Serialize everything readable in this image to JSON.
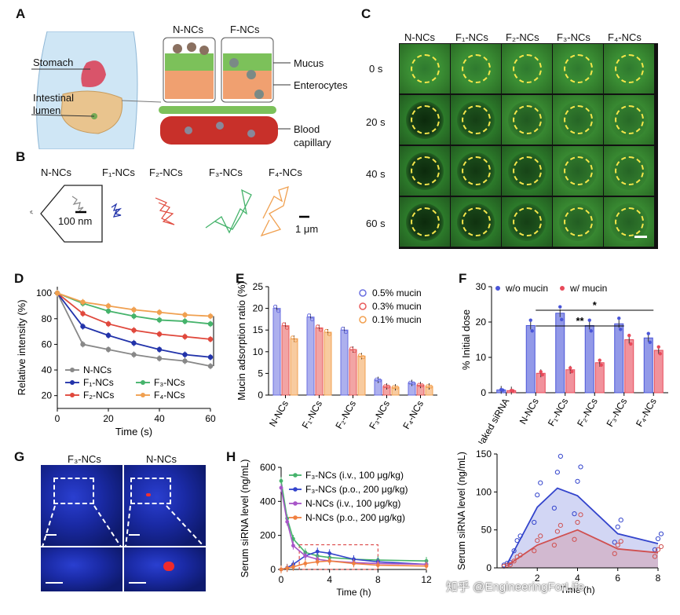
{
  "panels": {
    "A": {
      "label": "A",
      "body_labels": [
        "Stomach",
        "Intestinal",
        "lumen"
      ],
      "col_labels": [
        "N-NCs",
        "F-NCs"
      ],
      "layer_labels": [
        "Mucus",
        "Enterocytes",
        "Blood",
        "capillary"
      ]
    },
    "B": {
      "label": "B",
      "items": [
        "N-NCs",
        "F₁-NCs",
        "F₂-NCs",
        "F₃-NCs",
        "F₄-NCs"
      ],
      "scale_small": "100 nm",
      "scale_large": "1 μm",
      "colors": [
        "#888888",
        "#2233aa",
        "#e0483c",
        "#45b36b",
        "#f0a050"
      ]
    },
    "C": {
      "label": "C",
      "cols": [
        "N-NCs",
        "F₁-NCs",
        "F₂-NCs",
        "F₃-NCs",
        "F₄-NCs"
      ],
      "rows": [
        "0 s",
        "20 s",
        "40 s",
        "60 s"
      ]
    },
    "D": {
      "label": "D",
      "significance": "***"
    },
    "E": {
      "label": "E"
    },
    "F": {
      "label": "F",
      "sig1": "*",
      "sig2": "**"
    },
    "G": {
      "label": "G",
      "cols": [
        "F₃-NCs",
        "N-NCs"
      ]
    },
    "H": {
      "label": "H"
    },
    "watermark": "知乎 @EngineeringForLife"
  },
  "chart_data": [
    {
      "id": "D",
      "type": "line",
      "xlabel": "Time  (s)",
      "ylabel": "Relative intensity (%)",
      "xlim": [
        0,
        60
      ],
      "ylim": [
        40,
        100
      ],
      "xticks": [
        "0",
        "20",
        "40",
        "60"
      ],
      "yticks": [
        "20",
        "40",
        "60",
        "80",
        "100"
      ],
      "x": [
        0,
        10,
        20,
        30,
        40,
        50,
        60
      ],
      "series": [
        {
          "name": "N-NCs",
          "color": "#888888",
          "values": [
            100,
            60,
            56,
            52,
            49,
            47,
            43
          ]
        },
        {
          "name": "F₁-NCs",
          "color": "#2233aa",
          "values": [
            100,
            74,
            67,
            61,
            56,
            52,
            50
          ]
        },
        {
          "name": "F₂-NCs",
          "color": "#e0483c",
          "values": [
            100,
            84,
            76,
            71,
            68,
            66,
            64
          ]
        },
        {
          "name": "F₃-NCs",
          "color": "#45b36b",
          "values": [
            100,
            92,
            86,
            82,
            79,
            78,
            76
          ]
        },
        {
          "name": "F₄-NCs",
          "color": "#f0a050",
          "values": [
            100,
            93,
            90,
            87,
            85,
            83,
            82
          ]
        }
      ],
      "legend_rows": [
        [
          "N-NCs",
          ""
        ],
        [
          "F₁-NCs",
          "F₃-NCs"
        ],
        [
          "F₂-NCs",
          "F₄-NCs"
        ]
      ]
    },
    {
      "id": "E",
      "type": "bar",
      "xlabel": "",
      "ylabel": "Mucin adsorption ratio (%)",
      "ylim": [
        0,
        25
      ],
      "yticks": [
        "0",
        "5",
        "10",
        "15",
        "20",
        "25"
      ],
      "categories": [
        "N-NCs",
        "F₁-NCs",
        "F₂-NCs",
        "F₃-NCs",
        "F₄-NCs"
      ],
      "series": [
        {
          "name": "0.5% mucin",
          "color": "#6a6fe0",
          "values": [
            20,
            18,
            15,
            3.5,
            2.8
          ]
        },
        {
          "name": "0.3% mucin",
          "color": "#e85a5a",
          "values": [
            16,
            15.5,
            10.5,
            2,
            2.3
          ]
        },
        {
          "name": "0.1% mucin",
          "color": "#f2a050",
          "values": [
            13,
            14.5,
            9,
            1.8,
            2
          ]
        }
      ]
    },
    {
      "id": "F",
      "type": "bar",
      "xlabel": "",
      "ylabel": "% Initial dose",
      "ylim": [
        0,
        30
      ],
      "yticks": [
        "0",
        "10",
        "20",
        "30"
      ],
      "categories": [
        "Naked siRNA",
        "N-NCs",
        "F₁-NCs",
        "F₂-NCs",
        "F₃-NCs",
        "F₄-NCs"
      ],
      "series": [
        {
          "name": "w/o mucin",
          "color": "#4a55d8",
          "values": [
            0.8,
            19,
            22.5,
            19,
            19.5,
            15.5
          ]
        },
        {
          "name": "w/ mucin",
          "color": "#e84a5a",
          "values": [
            0.6,
            5.5,
            6.5,
            8.5,
            15,
            12
          ]
        }
      ]
    },
    {
      "id": "H1",
      "type": "line",
      "xlabel": "Time (h)",
      "ylabel": "Serum siRNA  level (ng/mL)",
      "xlim": [
        0,
        12
      ],
      "ylim": [
        0,
        600
      ],
      "xticks": [
        "0",
        "4",
        "8",
        "12"
      ],
      "yticks": [
        "0",
        "200",
        "400",
        "600"
      ],
      "series": [
        {
          "name": "F₃-NCs (i.v., 100 μg/kg)",
          "color": "#45b36b",
          "x": [
            0,
            0.5,
            1,
            2,
            3,
            4,
            6,
            8,
            12
          ],
          "values": [
            520,
            300,
            180,
            100,
            80,
            70,
            60,
            55,
            50
          ]
        },
        {
          "name": "F₃-NCs (p.o., 200 μg/kg)",
          "color": "#3344cc",
          "x": [
            0,
            0.5,
            1,
            2,
            3,
            4,
            6,
            8,
            12
          ],
          "values": [
            0,
            10,
            30,
            80,
            105,
            95,
            60,
            45,
            30
          ]
        },
        {
          "name": "N-NCs (i.v., 100 μg/kg)",
          "color": "#a855c8",
          "x": [
            0,
            0.5,
            1,
            2,
            3,
            4,
            6,
            8,
            12
          ],
          "values": [
            480,
            280,
            140,
            80,
            60,
            50,
            40,
            35,
            30
          ]
        },
        {
          "name": "N-NCs (p.o., 200 μg/kg)",
          "color": "#f08040",
          "x": [
            0,
            0.5,
            1,
            2,
            3,
            4,
            6,
            8,
            12
          ],
          "values": [
            0,
            8,
            15,
            35,
            45,
            50,
            35,
            25,
            20
          ]
        }
      ]
    },
    {
      "id": "H2",
      "type": "area",
      "xlabel": "Time (h)",
      "ylabel": "Serum siRNA  level (ng/mL)",
      "xlim": [
        0,
        8
      ],
      "ylim": [
        0,
        150
      ],
      "xticks": [
        "2",
        "4",
        "6",
        "8"
      ],
      "yticks": [
        "0",
        "50",
        "100",
        "150"
      ],
      "series": [
        {
          "name": "F₃-NCs (p.o.)",
          "color": "#3344cc",
          "x": [
            0.5,
            1,
            2,
            3,
            4,
            6,
            8
          ],
          "values": [
            5,
            30,
            80,
            105,
            95,
            45,
            32
          ]
        },
        {
          "name": "N-NCs (p.o.)",
          "color": "#d05050",
          "x": [
            0.5,
            1,
            2,
            3,
            4,
            6,
            8
          ],
          "values": [
            3,
            12,
            30,
            40,
            50,
            25,
            20
          ]
        }
      ]
    }
  ]
}
